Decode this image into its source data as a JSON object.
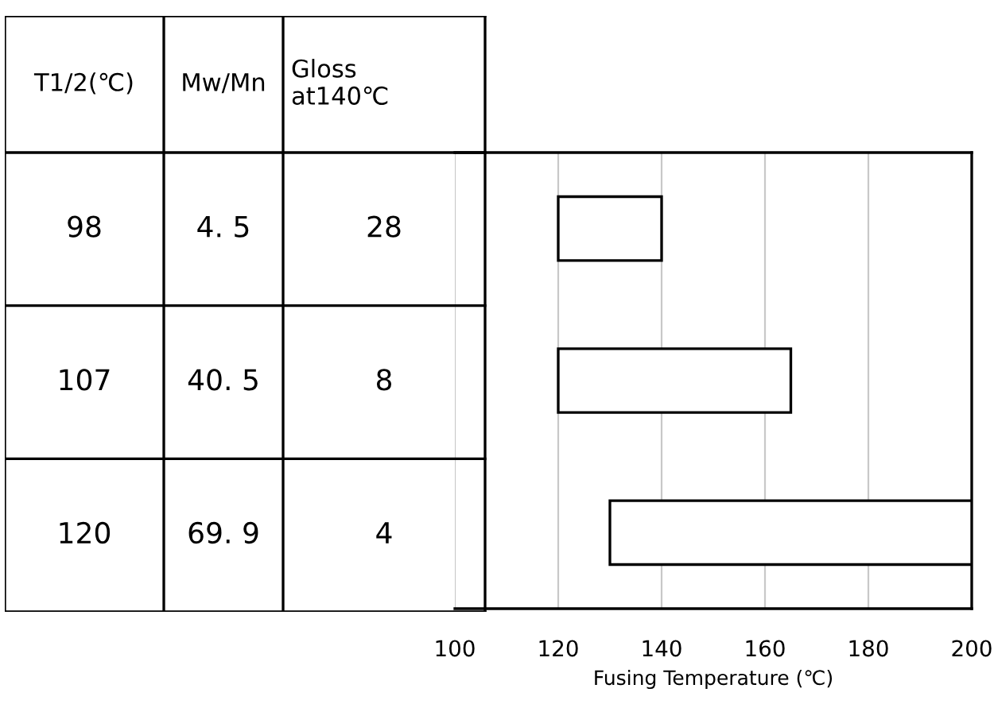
{
  "chart_data": [
    {
      "type": "other",
      "categories": [
        "T1/2(℃)",
        "Mw/Mn",
        "Gloss\nat140℃"
      ],
      "annotations": [
        "98",
        "4. 5",
        "28",
        "107",
        "40. 5",
        "8",
        "120",
        "69. 9",
        "4"
      ]
    },
    {
      "type": "bar",
      "orientation": "horizontal",
      "categories": [
        null,
        null,
        null
      ],
      "base": [
        120,
        120,
        130
      ],
      "values": [
        20,
        45,
        70
      ],
      "color": "#ffffff",
      "xlim": [
        100,
        200
      ],
      "xticks": [
        100,
        120,
        140,
        160,
        180,
        200
      ],
      "xlabel": "Fusing Temperature (℃)",
      "grid": "x",
      "tick_labels": "x"
    }
  ]
}
